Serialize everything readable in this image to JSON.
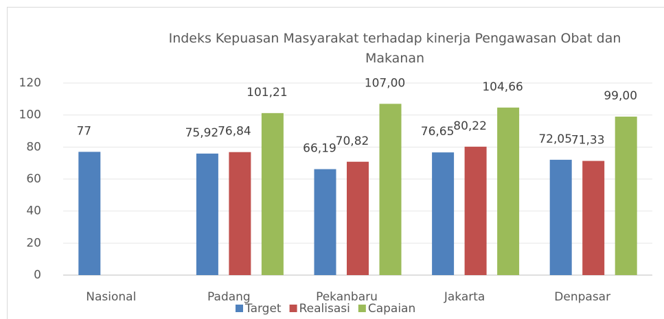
{
  "chart_data": {
    "type": "bar",
    "title": "Indeks Kepuasan Masyarakat terhadap kinerja Pengawasan Obat dan Makanan",
    "categories": [
      "Nasional",
      "Padang",
      "Pekanbaru",
      "Jakarta",
      "Denpasar"
    ],
    "series": [
      {
        "name": "Target",
        "color": "#4f81bd",
        "values": [
          77,
          75.92,
          66.19,
          76.65,
          72.05
        ],
        "value_labels": [
          "77",
          "75,92",
          "66,19",
          "76,65",
          "72,05"
        ]
      },
      {
        "name": "Realisasi",
        "color": "#c0504d",
        "values": [
          null,
          76.84,
          70.82,
          80.22,
          71.33
        ],
        "value_labels": [
          null,
          "76,84",
          "70,82",
          "80,22",
          "71,33"
        ]
      },
      {
        "name": "Capaian",
        "color": "#9bbb59",
        "values": [
          null,
          101.21,
          107,
          104.66,
          99
        ],
        "value_labels": [
          null,
          "101,21",
          "107,00",
          "104,66",
          "99,00"
        ]
      }
    ],
    "ylim": [
      0,
      120
    ],
    "yticks": [
      0,
      20,
      40,
      60,
      80,
      100,
      120
    ],
    "grid": true,
    "legend": "bottom"
  }
}
